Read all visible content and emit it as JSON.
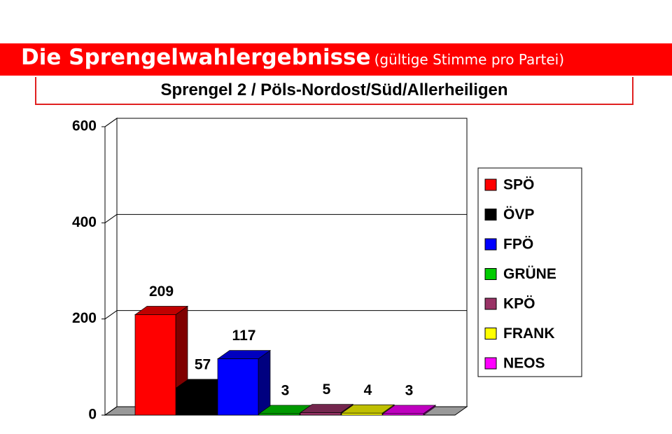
{
  "header": {
    "title": "Die Sprengelwahlergebnisse",
    "note": "(gültige Stimme pro Partei)"
  },
  "chart_data": {
    "type": "bar3d",
    "title": "Sprengel 2 / Pöls-Nordost/Süd/Allerheiligen",
    "series": [
      {
        "name": "SPÖ",
        "color": "#ff0000",
        "values": [
          209
        ]
      },
      {
        "name": "ÖVP",
        "color": "#000000",
        "values": [
          57
        ]
      },
      {
        "name": "FPÖ",
        "color": "#0000ff",
        "values": [
          117
        ]
      },
      {
        "name": "GRÜNE",
        "color": "#00cc00",
        "values": [
          3
        ]
      },
      {
        "name": "KPÖ",
        "color": "#993366",
        "values": [
          5
        ]
      },
      {
        "name": "FRANK",
        "color": "#ffff00",
        "values": [
          4
        ]
      },
      {
        "name": "NEOS",
        "color": "#ff00ff",
        "values": [
          3
        ]
      }
    ],
    "ylim": [
      0,
      600
    ],
    "yticks": [
      0,
      200,
      400,
      600
    ],
    "grid": true,
    "legend": "right"
  }
}
